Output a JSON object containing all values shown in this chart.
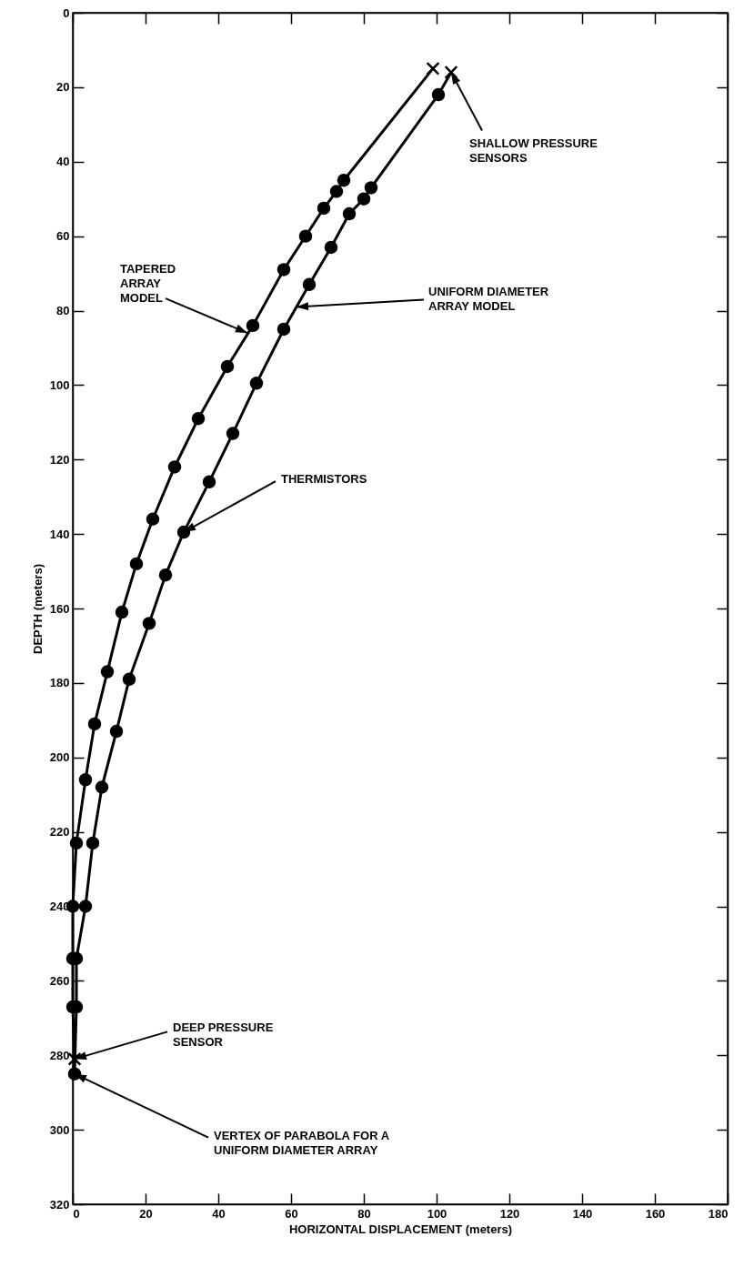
{
  "chart_data": {
    "type": "line",
    "xlabel": "HORIZONTAL DISPLACEMENT (meters)",
    "ylabel": "DEPTH (meters)",
    "xlim": [
      0,
      180
    ],
    "xticks": [
      0,
      20,
      40,
      60,
      80,
      100,
      120,
      140,
      160,
      180
    ],
    "ylim": [
      320,
      0
    ],
    "yticks": [
      0,
      20,
      40,
      60,
      80,
      100,
      120,
      140,
      160,
      180,
      200,
      220,
      240,
      260,
      280,
      300,
      320
    ],
    "grid": false,
    "series": [
      {
        "type": "line",
        "color": "#000000",
        "marker": "none",
        "x": [
          99,
          74.5,
          72.5,
          69,
          64,
          58,
          49.5,
          42.5,
          34.5,
          28,
          22,
          17.5,
          13.5,
          9.5,
          6,
          3.5,
          1,
          0,
          0,
          0,
          0.5
        ],
        "values": [
          15,
          45,
          48,
          52.5,
          60,
          69,
          84,
          95,
          109,
          122,
          136,
          148,
          161,
          177,
          191,
          206,
          223,
          240,
          254,
          267,
          281
        ]
      },
      {
        "type": "line",
        "color": "#000000",
        "marker": "none",
        "x": [
          104,
          100.5,
          82,
          80,
          76,
          71,
          65,
          58,
          50.5,
          44,
          37.5,
          30.5,
          25.5,
          21,
          15.5,
          12,
          8,
          5.5,
          3.5,
          1,
          1,
          0.5
        ],
        "values": [
          16,
          22,
          47,
          50,
          54,
          63,
          73,
          85,
          99.5,
          113,
          126,
          139.5,
          151,
          164,
          179,
          193,
          208,
          223,
          240,
          254,
          267,
          285
        ]
      },
      {
        "type": "scatter",
        "color": "#000000",
        "marker": "circle",
        "x": [
          74.5,
          72.5,
          69,
          64,
          58,
          49.5,
          42.5,
          34.5,
          28,
          22,
          17.5,
          13.5,
          9.5,
          6,
          3.5,
          1,
          0,
          0,
          0,
          100.5,
          82,
          80,
          76,
          71,
          65,
          58,
          50.5,
          44,
          37.5,
          30.5,
          25.5,
          21,
          15.5,
          12,
          8,
          5.5,
          3.5,
          1,
          1,
          0.5
        ],
        "values": [
          45,
          48,
          52.5,
          60,
          69,
          84,
          95,
          109,
          122,
          136,
          148,
          161,
          177,
          191,
          206,
          223,
          240,
          254,
          267,
          22,
          47,
          50,
          54,
          63,
          73,
          85,
          99.5,
          113,
          126,
          139.5,
          151,
          164,
          179,
          193,
          208,
          223,
          240,
          254,
          267,
          285
        ]
      },
      {
        "type": "scatter",
        "color": "#000000",
        "marker": "cross",
        "x": [
          99,
          104,
          0.5
        ],
        "values": [
          15,
          16,
          281
        ]
      }
    ],
    "annotations": [
      {
        "text": "SHALLOW PRESSURE SENSORS",
        "x": 104,
        "y": 16
      },
      {
        "text": "TAPERED ARRAY MODEL",
        "x": 48,
        "y": 86
      },
      {
        "text": "UNIFORM DIAMETER ARRAY MODEL",
        "x": 61.5,
        "y": 79
      },
      {
        "text": "THERMISTORS",
        "x": 30.5,
        "y": 139.5
      },
      {
        "text": "DEEP PRESSURE SENSOR",
        "x": 0.5,
        "y": 281
      },
      {
        "text": "VERTEX OF PARABOLA FOR A UNIFORM DIAMETER ARRAY",
        "x": 0.5,
        "y": 285
      }
    ]
  }
}
